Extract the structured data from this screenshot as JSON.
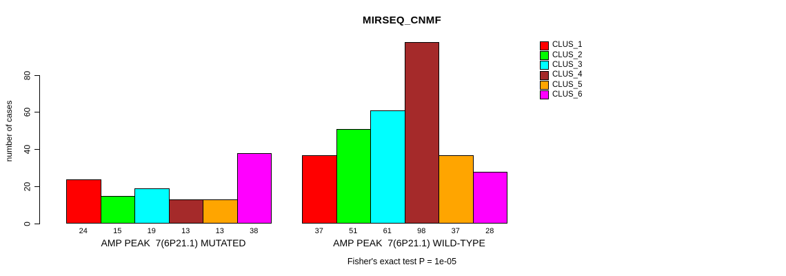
{
  "chart_data": {
    "type": "bar",
    "title": "MIRSEQ_CNMF",
    "ylabel": "number of cases",
    "ylim": [
      0,
      80
    ],
    "yticks": [
      0,
      20,
      40,
      60,
      80
    ],
    "grid": false,
    "legend_position": "right",
    "categories": [
      "AMP PEAK  7(6P21.1) MUTATED",
      "AMP PEAK  7(6P21.1) WILD-TYPE"
    ],
    "series": [
      {
        "name": "CLUS_1",
        "color": "#FF0000",
        "values": [
          24,
          37
        ]
      },
      {
        "name": "CLUS_2",
        "color": "#00FF00",
        "values": [
          15,
          51
        ]
      },
      {
        "name": "CLUS_3",
        "color": "#00FFFF",
        "values": [
          19,
          61
        ]
      },
      {
        "name": "CLUS_4",
        "color": "#A52A2A",
        "values": [
          13,
          98
        ]
      },
      {
        "name": "CLUS_5",
        "color": "#FFA500",
        "values": [
          13,
          37
        ]
      },
      {
        "name": "CLUS_6",
        "color": "#FF00FF",
        "values": [
          38,
          28
        ]
      }
    ],
    "footnote": "Fisher's exact test P = 1e-05"
  }
}
